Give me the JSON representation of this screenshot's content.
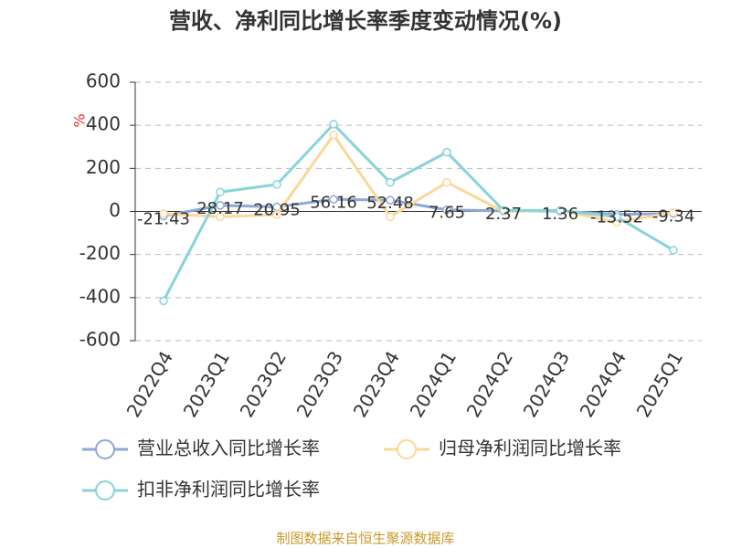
{
  "chart_data": {
    "type": "line",
    "title": "营收、净利同比增长率季度变动情况(%)",
    "y_label": "%",
    "source": "制图数据来自恒生聚源数据库",
    "categories": [
      "2022Q4",
      "2023Q1",
      "2023Q2",
      "2023Q3",
      "2023Q4",
      "2024Q1",
      "2024Q2",
      "2024Q3",
      "2024Q4",
      "2025Q1"
    ],
    "series": [
      {
        "name": "营业总收入同比增长率",
        "color": "#8fa8d6",
        "values": [
          -21.43,
          28.17,
          20.95,
          56.16,
          52.48,
          7.65,
          2.37,
          1.36,
          -13.52,
          -9.34
        ],
        "show_labels": true
      },
      {
        "name": "归母净利润同比增长率",
        "color": "#fbd89a",
        "values": [
          -10,
          -25,
          -15,
          355,
          -25,
          135,
          0,
          5,
          -50,
          -5
        ]
      },
      {
        "name": "扣非净利润同比增长率",
        "color": "#88d4d8",
        "values": [
          -415,
          90,
          125,
          405,
          135,
          275,
          5,
          5,
          -25,
          -180
        ]
      }
    ],
    "ylim": [
      -600,
      600
    ],
    "yticks": [
      -600,
      -400,
      -200,
      0,
      200,
      400,
      600
    ],
    "grid": true
  }
}
